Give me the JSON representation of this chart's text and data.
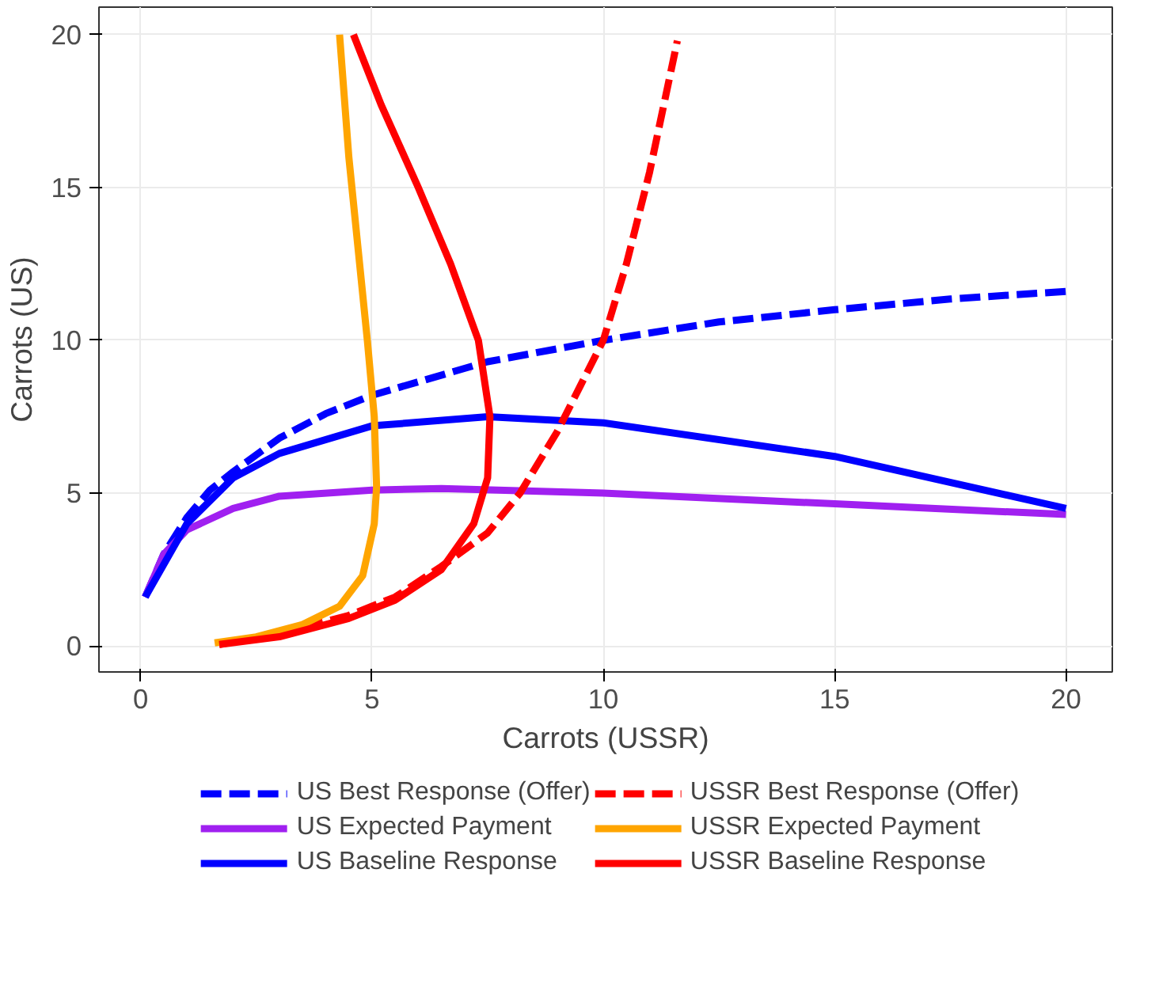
{
  "chart_data": {
    "type": "line",
    "xlabel": "Carrots (USSR)",
    "ylabel": "Carrots (US)",
    "xlim": [
      -0.9,
      21.0
    ],
    "ylim": [
      -0.85,
      20.9
    ],
    "xticks": [
      0,
      5,
      10,
      15,
      20
    ],
    "yticks": [
      0,
      5,
      10,
      15,
      20
    ],
    "grid": true,
    "legend": "bottom",
    "series": [
      {
        "name": "US Best Response (Offer)",
        "color": "#0000ff",
        "line_style": "dashed",
        "x": [
          0.1,
          0.5,
          1,
          1.5,
          2,
          3,
          4,
          5,
          7.5,
          10,
          12.5,
          15,
          17.5,
          20
        ],
        "values": [
          1.6,
          3,
          4.2,
          5.1,
          5.7,
          6.8,
          7.6,
          8.2,
          9.3,
          10,
          10.6,
          11,
          11.35,
          11.6
        ]
      },
      {
        "name": "US Expected Payment",
        "color": "#a020f0",
        "line_style": "solid",
        "x": [
          0.1,
          0.5,
          1,
          2,
          3,
          5,
          6.5,
          10,
          15,
          20
        ],
        "values": [
          1.6,
          3,
          3.8,
          4.5,
          4.9,
          5.1,
          5.15,
          5,
          4.65,
          4.3
        ]
      },
      {
        "name": "US Baseline Response",
        "color": "#0000ff",
        "line_style": "solid",
        "x": [
          0.1,
          1,
          2,
          3,
          5,
          7.5,
          10,
          15,
          20
        ],
        "values": [
          1.6,
          4,
          5.5,
          6.3,
          7.2,
          7.5,
          7.3,
          6.2,
          4.5
        ]
      },
      {
        "name": "USSR Best Response (Offer)",
        "color": "#ff0000",
        "line_style": "dashed",
        "x": [
          1.7,
          3,
          4.5,
          5.5,
          6.5,
          7.5,
          8.2,
          9,
          9.5,
          10,
          10.5,
          11,
          11.6
        ],
        "values": [
          0.05,
          0.4,
          1,
          1.6,
          2.6,
          3.7,
          5,
          7,
          8.5,
          10,
          12.5,
          15.5,
          19.8
        ]
      },
      {
        "name": "USSR Expected Payment",
        "color": "#ffa500",
        "line_style": "solid",
        "x": [
          1.6,
          2.5,
          3.5,
          4.3,
          4.8,
          5.05,
          5.1,
          5.05,
          4.9,
          4.7,
          4.5,
          4.3
        ],
        "values": [
          0.1,
          0.3,
          0.7,
          1.3,
          2.3,
          4,
          5.2,
          7.5,
          10,
          13,
          16,
          20
        ]
      },
      {
        "name": "USSR Baseline Response",
        "color": "#ff0000",
        "line_style": "solid",
        "x": [
          1.7,
          3,
          4.5,
          5.5,
          6.5,
          7.2,
          7.5,
          7.55,
          7.3,
          6.7,
          6,
          5.2,
          4.6
        ],
        "values": [
          0.05,
          0.3,
          0.9,
          1.5,
          2.5,
          4,
          5.5,
          7.5,
          10,
          12.5,
          15,
          17.7,
          20
        ]
      }
    ]
  }
}
